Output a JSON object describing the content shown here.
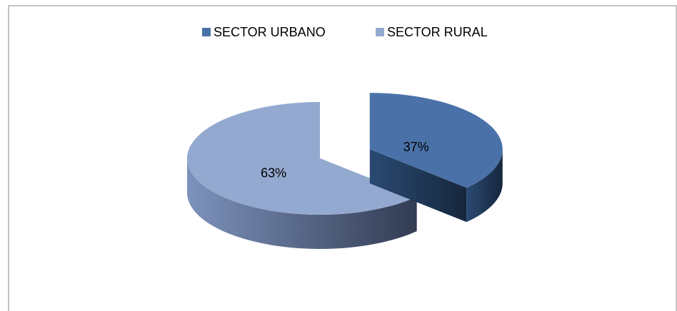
{
  "chart_data": {
    "type": "pie",
    "categories": [
      "SECTOR URBANO",
      "SECTOR RURAL"
    ],
    "values": [
      37,
      63
    ],
    "value_labels": [
      "37%",
      "63%"
    ],
    "colors": [
      "#4a72a8",
      "#94a9d0"
    ],
    "legend": "top"
  }
}
